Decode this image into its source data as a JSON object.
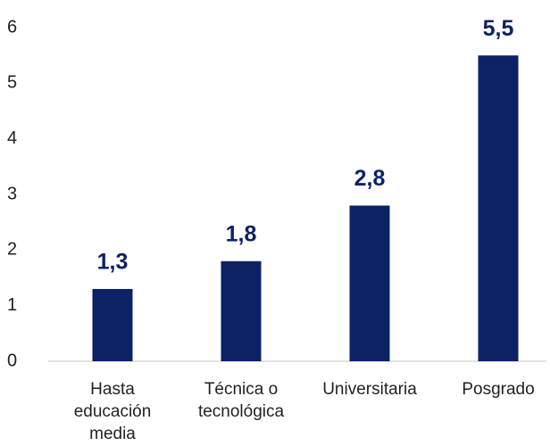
{
  "chart_data": {
    "type": "bar",
    "categories": [
      "Hasta educación media",
      "Técnica o tecnológica",
      "Universitaria",
      "Posgrado"
    ],
    "values": [
      1.3,
      1.8,
      2.8,
      5.5
    ],
    "value_labels": [
      "1,3",
      "1,8",
      "2,8",
      "5,5"
    ],
    "color": "#0b2265",
    "ylim": [
      0,
      6
    ],
    "yticks": [
      0,
      1,
      2,
      3,
      4,
      5,
      6
    ],
    "grid": false
  }
}
